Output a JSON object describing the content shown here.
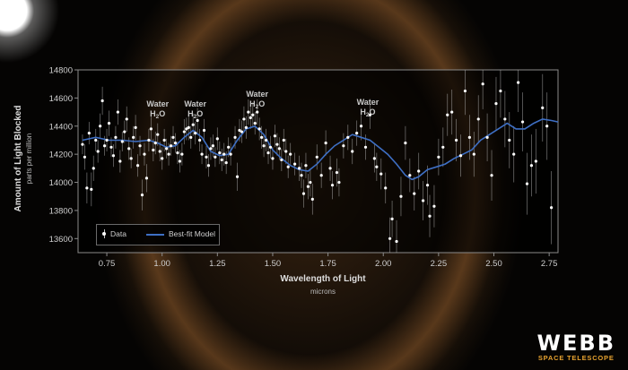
{
  "chart_data": {
    "type": "scatter",
    "title": "",
    "xlabel": "Wavelength of Light",
    "xunits": "microns",
    "ylabel": "Amount of Light Blocked",
    "yunits": "parts per million",
    "xlim": [
      0.62,
      2.79
    ],
    "ylim": [
      13500,
      14800
    ],
    "xticks": [
      0.75,
      1.0,
      1.25,
      1.5,
      1.75,
      2.0,
      2.25,
      2.5,
      2.75
    ],
    "xtick_labels": [
      "0.75",
      "1.00",
      "1.25",
      "1.50",
      "1.75",
      "2.00",
      "2.25",
      "2.50",
      "2.75"
    ],
    "yticks": [
      13600,
      13800,
      14000,
      14200,
      14400,
      14600,
      14800
    ],
    "ytick_labels": [
      "13600",
      "13800",
      "14000",
      "14200",
      "14400",
      "14600",
      "14800"
    ],
    "legend": {
      "position": "bottom-left",
      "data_label": "Data",
      "model_label": "Best-fit Model"
    },
    "colors": {
      "model": "#3e6fc4",
      "data": "#ffffff",
      "brand_accent": "#e8a330"
    },
    "annotations": [
      {
        "label": "Water",
        "sub": "H2O",
        "x": 0.98,
        "y": 14540
      },
      {
        "label": "Water",
        "sub": "H2O",
        "x": 1.15,
        "y": 14540
      },
      {
        "label": "Water",
        "sub": "H2O",
        "x": 1.43,
        "y": 14610
      },
      {
        "label": "Water",
        "sub": "H2O",
        "x": 1.93,
        "y": 14550
      }
    ],
    "series": [
      {
        "name": "Data",
        "points": [
          [
            0.64,
            14270,
            70
          ],
          [
            0.65,
            14180,
            90
          ],
          [
            0.66,
            13960,
            110
          ],
          [
            0.67,
            14350,
            80
          ],
          [
            0.68,
            13950,
            120
          ],
          [
            0.69,
            14100,
            90
          ],
          [
            0.7,
            14300,
            80
          ],
          [
            0.71,
            14220,
            80
          ],
          [
            0.72,
            14400,
            90
          ],
          [
            0.73,
            14580,
            100
          ],
          [
            0.74,
            14260,
            70
          ],
          [
            0.75,
            14300,
            80
          ],
          [
            0.76,
            14420,
            90
          ],
          [
            0.77,
            14250,
            70
          ],
          [
            0.78,
            14190,
            80
          ],
          [
            0.79,
            14320,
            80
          ],
          [
            0.8,
            14500,
            90
          ],
          [
            0.81,
            14150,
            80
          ],
          [
            0.82,
            14290,
            70
          ],
          [
            0.83,
            14360,
            80
          ],
          [
            0.84,
            14450,
            90
          ],
          [
            0.85,
            14240,
            80
          ],
          [
            0.86,
            14170,
            70
          ],
          [
            0.87,
            14320,
            80
          ],
          [
            0.88,
            14390,
            90
          ],
          [
            0.89,
            14120,
            80
          ],
          [
            0.9,
            14260,
            70
          ],
          [
            0.91,
            13910,
            110
          ],
          [
            0.92,
            14200,
            80
          ],
          [
            0.93,
            14030,
            100
          ],
          [
            0.94,
            14300,
            80
          ],
          [
            0.95,
            14380,
            90
          ],
          [
            0.96,
            14230,
            80
          ],
          [
            0.97,
            14280,
            80
          ],
          [
            0.98,
            14340,
            80
          ],
          [
            0.99,
            14220,
            70
          ],
          [
            1.0,
            14170,
            80
          ],
          [
            1.01,
            14300,
            80
          ],
          [
            1.02,
            14240,
            70
          ],
          [
            1.03,
            14200,
            80
          ],
          [
            1.04,
            14260,
            70
          ],
          [
            1.05,
            14320,
            80
          ],
          [
            1.06,
            14280,
            70
          ],
          [
            1.07,
            14210,
            80
          ],
          [
            1.08,
            14150,
            80
          ],
          [
            1.09,
            14200,
            80
          ],
          [
            1.1,
            14360,
            90
          ],
          [
            1.11,
            14380,
            80
          ],
          [
            1.12,
            14390,
            90
          ],
          [
            1.13,
            14320,
            80
          ],
          [
            1.14,
            14410,
            80
          ],
          [
            1.15,
            14350,
            80
          ],
          [
            1.16,
            14440,
            90
          ],
          [
            1.17,
            14300,
            80
          ],
          [
            1.18,
            14200,
            70
          ],
          [
            1.19,
            14370,
            80
          ],
          [
            1.2,
            14180,
            80
          ],
          [
            1.21,
            14120,
            80
          ],
          [
            1.22,
            14240,
            80
          ],
          [
            1.23,
            14260,
            80
          ],
          [
            1.24,
            14180,
            70
          ],
          [
            1.25,
            14310,
            80
          ],
          [
            1.26,
            14210,
            80
          ],
          [
            1.27,
            14160,
            80
          ],
          [
            1.28,
            14200,
            80
          ],
          [
            1.29,
            14140,
            80
          ],
          [
            1.3,
            14250,
            70
          ],
          [
            1.31,
            14200,
            80
          ],
          [
            1.33,
            14320,
            80
          ],
          [
            1.34,
            14040,
            100
          ],
          [
            1.35,
            14370,
            80
          ],
          [
            1.36,
            14360,
            80
          ],
          [
            1.37,
            14450,
            90
          ],
          [
            1.38,
            14390,
            80
          ],
          [
            1.39,
            14500,
            90
          ],
          [
            1.4,
            14460,
            80
          ],
          [
            1.41,
            14480,
            90
          ],
          [
            1.42,
            14420,
            80
          ],
          [
            1.43,
            14500,
            90
          ],
          [
            1.44,
            14380,
            80
          ],
          [
            1.45,
            14320,
            80
          ],
          [
            1.46,
            14260,
            80
          ],
          [
            1.47,
            14300,
            80
          ],
          [
            1.48,
            14210,
            80
          ],
          [
            1.49,
            14250,
            80
          ],
          [
            1.5,
            14170,
            80
          ],
          [
            1.51,
            14330,
            80
          ],
          [
            1.52,
            14270,
            80
          ],
          [
            1.53,
            14240,
            80
          ],
          [
            1.54,
            14160,
            80
          ],
          [
            1.55,
            14300,
            80
          ],
          [
            1.56,
            14220,
            90
          ],
          [
            1.57,
            14110,
            80
          ],
          [
            1.58,
            14200,
            80
          ],
          [
            1.6,
            14130,
            80
          ],
          [
            1.62,
            14100,
            90
          ],
          [
            1.63,
            14050,
            90
          ],
          [
            1.64,
            13920,
            100
          ],
          [
            1.65,
            14120,
            90
          ],
          [
            1.66,
            13970,
            90
          ],
          [
            1.67,
            14000,
            100
          ],
          [
            1.68,
            13880,
            110
          ],
          [
            1.7,
            14180,
            90
          ],
          [
            1.72,
            14050,
            90
          ],
          [
            1.74,
            14280,
            90
          ],
          [
            1.76,
            14100,
            90
          ],
          [
            1.77,
            13980,
            100
          ],
          [
            1.79,
            14070,
            100
          ],
          [
            1.8,
            14000,
            100
          ],
          [
            1.82,
            14260,
            90
          ],
          [
            1.84,
            14320,
            90
          ],
          [
            1.86,
            14220,
            90
          ],
          [
            1.88,
            14350,
            90
          ],
          [
            1.9,
            14400,
            100
          ],
          [
            1.92,
            14250,
            90
          ],
          [
            1.94,
            14480,
            100
          ],
          [
            1.96,
            14170,
            100
          ],
          [
            1.97,
            14110,
            100
          ],
          [
            1.99,
            14060,
            110
          ],
          [
            2.01,
            13960,
            110
          ],
          [
            2.03,
            13600,
            150
          ],
          [
            2.04,
            13740,
            130
          ],
          [
            2.06,
            13580,
            150
          ],
          [
            2.08,
            13900,
            140
          ],
          [
            2.1,
            14280,
            120
          ],
          [
            2.12,
            14050,
            120
          ],
          [
            2.14,
            13920,
            120
          ],
          [
            2.16,
            14080,
            130
          ],
          [
            2.18,
            13870,
            140
          ],
          [
            2.2,
            13980,
            140
          ],
          [
            2.21,
            13760,
            150
          ],
          [
            2.23,
            13830,
            150
          ],
          [
            2.25,
            14180,
            130
          ],
          [
            2.27,
            14250,
            140
          ],
          [
            2.29,
            14480,
            150
          ],
          [
            2.31,
            14500,
            160
          ],
          [
            2.33,
            14300,
            150
          ],
          [
            2.35,
            14190,
            150
          ],
          [
            2.37,
            14650,
            170
          ],
          [
            2.39,
            14320,
            160
          ],
          [
            2.41,
            14200,
            160
          ],
          [
            2.43,
            14450,
            170
          ],
          [
            2.45,
            14700,
            180
          ],
          [
            2.47,
            14320,
            170
          ],
          [
            2.49,
            14050,
            180
          ],
          [
            2.51,
            14560,
            190
          ],
          [
            2.53,
            14650,
            190
          ],
          [
            2.55,
            14450,
            200
          ],
          [
            2.57,
            14300,
            200
          ],
          [
            2.59,
            14200,
            200
          ],
          [
            2.61,
            14710,
            210
          ],
          [
            2.63,
            14430,
            210
          ],
          [
            2.65,
            13990,
            220
          ],
          [
            2.67,
            14120,
            220
          ],
          [
            2.69,
            14150,
            230
          ],
          [
            2.72,
            14530,
            240
          ],
          [
            2.74,
            14400,
            240
          ],
          [
            2.76,
            13820,
            260
          ]
        ]
      },
      {
        "name": "Best-fit Model",
        "points": [
          [
            0.64,
            14300
          ],
          [
            0.7,
            14320
          ],
          [
            0.76,
            14300
          ],
          [
            0.82,
            14300
          ],
          [
            0.88,
            14290
          ],
          [
            0.94,
            14300
          ],
          [
            0.98,
            14280
          ],
          [
            1.02,
            14250
          ],
          [
            1.06,
            14260
          ],
          [
            1.1,
            14320
          ],
          [
            1.14,
            14370
          ],
          [
            1.18,
            14320
          ],
          [
            1.22,
            14220
          ],
          [
            1.26,
            14190
          ],
          [
            1.3,
            14200
          ],
          [
            1.34,
            14300
          ],
          [
            1.38,
            14380
          ],
          [
            1.42,
            14400
          ],
          [
            1.46,
            14340
          ],
          [
            1.5,
            14230
          ],
          [
            1.54,
            14170
          ],
          [
            1.58,
            14120
          ],
          [
            1.62,
            14090
          ],
          [
            1.66,
            14080
          ],
          [
            1.7,
            14130
          ],
          [
            1.74,
            14200
          ],
          [
            1.78,
            14260
          ],
          [
            1.82,
            14300
          ],
          [
            1.86,
            14340
          ],
          [
            1.9,
            14320
          ],
          [
            1.94,
            14300
          ],
          [
            1.98,
            14250
          ],
          [
            2.02,
            14200
          ],
          [
            2.06,
            14130
          ],
          [
            2.1,
            14050
          ],
          [
            2.13,
            14020
          ],
          [
            2.16,
            14040
          ],
          [
            2.2,
            14090
          ],
          [
            2.24,
            14110
          ],
          [
            2.28,
            14130
          ],
          [
            2.32,
            14170
          ],
          [
            2.36,
            14200
          ],
          [
            2.4,
            14230
          ],
          [
            2.44,
            14300
          ],
          [
            2.48,
            14340
          ],
          [
            2.52,
            14380
          ],
          [
            2.56,
            14420
          ],
          [
            2.6,
            14380
          ],
          [
            2.64,
            14380
          ],
          [
            2.68,
            14420
          ],
          [
            2.72,
            14450
          ],
          [
            2.76,
            14440
          ],
          [
            2.79,
            14430
          ]
        ]
      }
    ]
  },
  "brand": {
    "name": "WEBB",
    "subtitle": "SPACE TELESCOPE"
  }
}
